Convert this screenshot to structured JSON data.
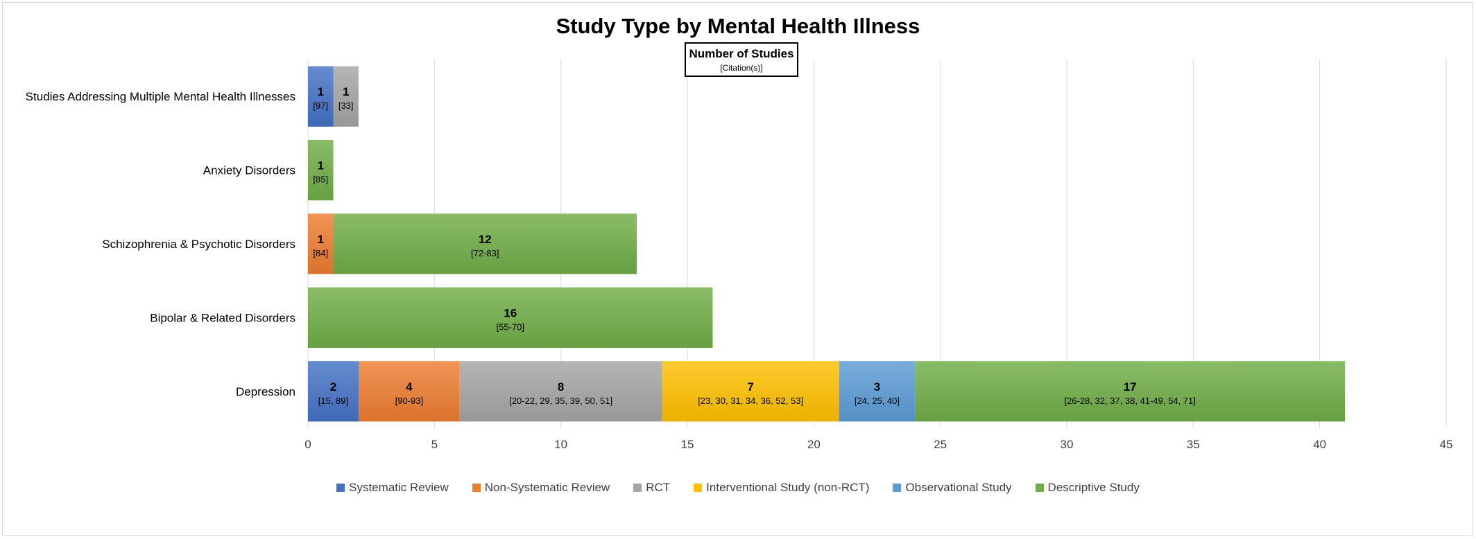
{
  "chart_data": {
    "type": "bar",
    "orientation": "horizontal",
    "stacked": true,
    "title": "Study Type by Mental Health Illness",
    "annotation": {
      "title": "Number of Studies",
      "subtitle": "[Citation(s)]"
    },
    "categories": [
      "Depression",
      "Bipolar & Related Disorders",
      "Schizophrenia & Psychotic Disorders",
      "Anxiety Disorders",
      "Studies Addressing Multiple Mental Health Illnesses"
    ],
    "xlim": [
      0,
      45
    ],
    "xticks": [
      "0",
      "5",
      "10",
      "15",
      "20",
      "25",
      "30",
      "35",
      "40",
      "45"
    ],
    "grid": true,
    "legend_position": "bottom",
    "series": [
      {
        "name": "Systematic Review",
        "color": "#4472c4",
        "values": [
          2,
          0,
          0,
          0,
          1
        ],
        "citations": [
          "[15, 89]",
          "",
          "",
          "",
          "[97]"
        ]
      },
      {
        "name": "Non-Systematic Review",
        "color": "#ed7d31",
        "values": [
          4,
          0,
          1,
          0,
          0
        ],
        "citations": [
          "[90-93]",
          "",
          "[84]",
          "",
          ""
        ]
      },
      {
        "name": "RCT",
        "color": "#a5a5a5",
        "values": [
          8,
          0,
          0,
          0,
          1
        ],
        "citations": [
          "[20-22, 29, 35, 39, 50, 51]",
          "",
          "",
          "",
          "[33]"
        ]
      },
      {
        "name": "Interventional Study (non-RCT)",
        "color": "#ffc000",
        "values": [
          7,
          0,
          0,
          0,
          0
        ],
        "citations": [
          "[23, 30, 31, 34, 36, 52, 53]",
          "",
          "",
          "",
          ""
        ]
      },
      {
        "name": "Observational Study",
        "color": "#5b9bd5",
        "values": [
          3,
          0,
          0,
          0,
          0
        ],
        "citations": [
          "[24, 25, 40]",
          "",
          "",
          "",
          ""
        ]
      },
      {
        "name": "Descriptive Study",
        "color": "#70ad47",
        "values": [
          17,
          16,
          12,
          1,
          0
        ],
        "citations": [
          "[26-28, 32, 37, 38, 41-49, 54, 71]",
          "[55-70]",
          "[72-83]",
          "[85]",
          ""
        ]
      }
    ]
  }
}
